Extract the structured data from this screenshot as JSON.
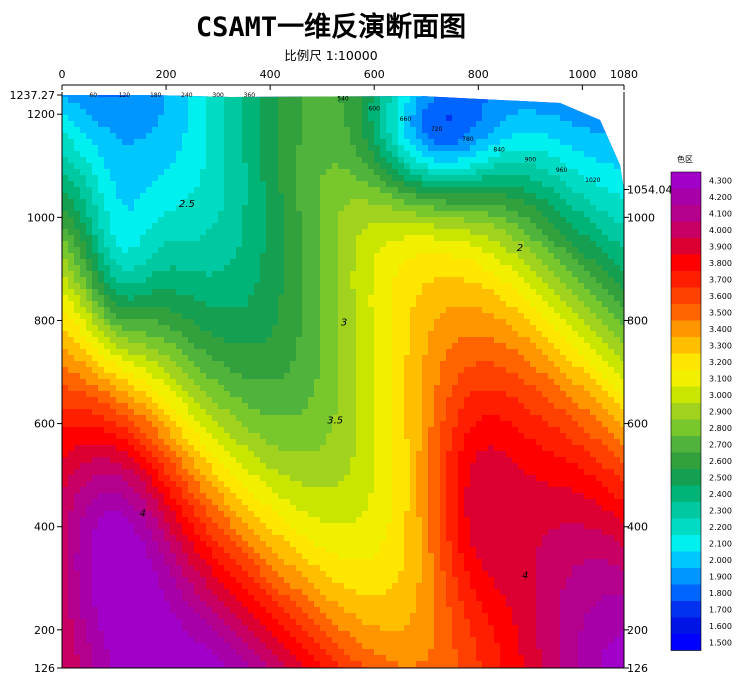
{
  "chart_data": {
    "type": "heatmap",
    "title": "CSAMT一维反演断面图",
    "subtitle": "比例尺 1:10000",
    "x_axis": {
      "range": [
        0,
        1080
      ],
      "ticks": [
        0,
        200,
        400,
        600,
        800,
        1000,
        1080
      ]
    },
    "y_axis": {
      "range": [
        126,
        1237.27
      ],
      "left_ticks": [
        "1237.27",
        "1200",
        "1000",
        "800",
        "600",
        "400",
        "200",
        "126"
      ],
      "right_ticks": [
        "1054.04",
        "1000",
        "800",
        "600",
        "400",
        "200",
        "126"
      ]
    },
    "station_labels": [
      "60",
      "120",
      "180",
      "240",
      "300",
      "360",
      "540",
      "600",
      "660",
      "720",
      "780",
      "840",
      "900",
      "960",
      "1020"
    ],
    "contour_labels": [
      "2.5",
      "3",
      "3.5",
      "4",
      "4",
      "2"
    ],
    "legend": {
      "title": "色区",
      "levels": [
        "4.300",
        "4.200",
        "4.100",
        "4.000",
        "3.900",
        "3.800",
        "3.700",
        "3.600",
        "3.500",
        "3.400",
        "3.300",
        "3.200",
        "3.100",
        "3.000",
        "2.900",
        "2.800",
        "2.700",
        "2.600",
        "2.500",
        "2.400",
        "2.300",
        "2.200",
        "2.100",
        "2.000",
        "1.900",
        "1.800",
        "1.700",
        "1.600",
        "1.500"
      ],
      "colors": [
        "#a000c8",
        "#a800a8",
        "#b4008c",
        "#c80064",
        "#dc0032",
        "#ff0000",
        "#ff1e00",
        "#ff4000",
        "#ff6400",
        "#ff9600",
        "#ffbe00",
        "#ffe600",
        "#f0f000",
        "#c8e600",
        "#a0d21e",
        "#78c82d",
        "#50b43c",
        "#32a03c",
        "#14a050",
        "#00b478",
        "#00c8a0",
        "#00dcc3",
        "#00f0f0",
        "#00c8ff",
        "#0096ff",
        "#0064ff",
        "#0032f0",
        "#0014e6",
        "#0000ff"
      ]
    }
  }
}
